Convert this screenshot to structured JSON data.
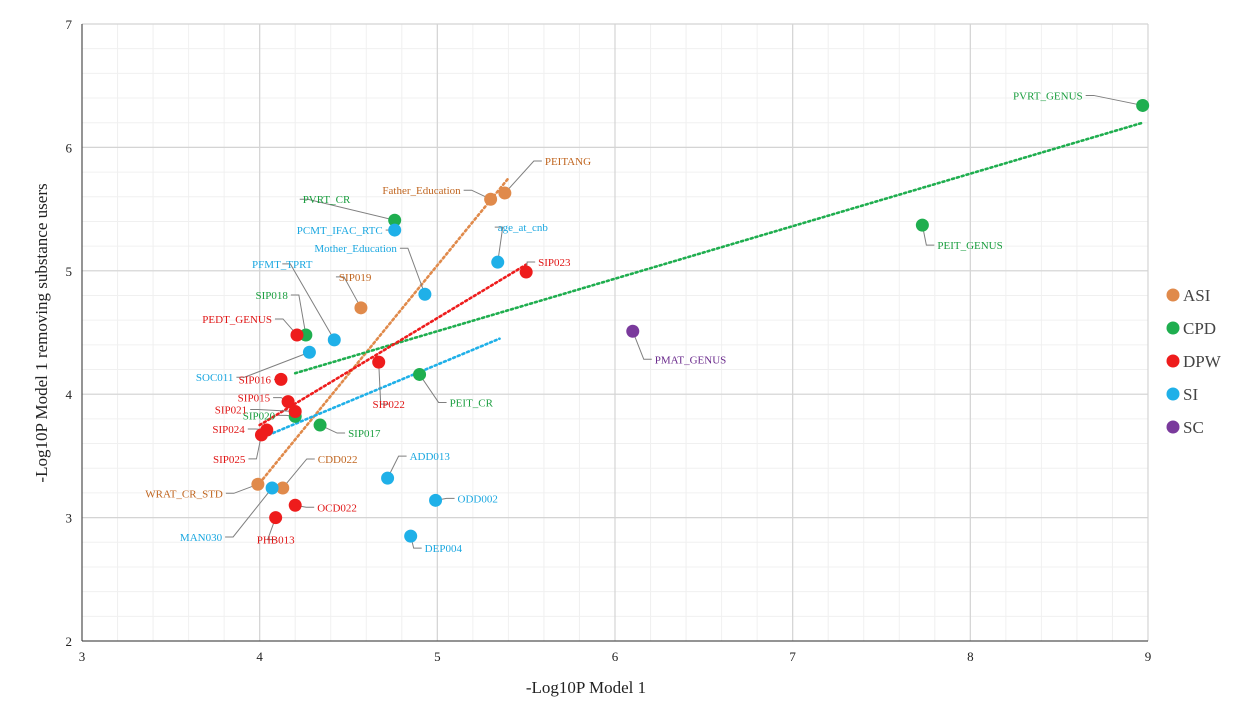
{
  "chart_data": {
    "type": "scatter",
    "title": "",
    "xlabel": "-Log10P Model 1",
    "ylabel": "-Log10P Model 1 removing substance users",
    "xlim": [
      3,
      9
    ],
    "ylim": [
      2,
      7
    ],
    "xticks": [
      "3",
      "4",
      "5",
      "6",
      "7",
      "8",
      "9"
    ],
    "yticks": [
      "2",
      "3",
      "4",
      "5",
      "6",
      "7"
    ],
    "grid": true,
    "legend_position": "right",
    "colors": {
      "ASI": "#e08a4b",
      "CPD": "#1fae4f",
      "DPW": "#ee1c1c",
      "SI": "#1fb0e8",
      "SC": "#7a3a9c"
    },
    "label_colors": {
      "ASI": "#c0651f",
      "CPD": "#1a9e3f",
      "DPW": "#e01515",
      "SI": "#1aa7e0",
      "SC": "#6a2a8c"
    },
    "series": [
      {
        "name": "ASI",
        "points": [
          {
            "label": "PEITANG",
            "x": 5.38,
            "y": 5.63
          },
          {
            "label": "Father_Education",
            "x": 5.3,
            "y": 5.58
          },
          {
            "label": "SIP019",
            "x": 4.57,
            "y": 4.7
          },
          {
            "label": "CDD022",
            "x": 4.13,
            "y": 3.24
          },
          {
            "label": "WRAT_CR_STD",
            "x": 3.99,
            "y": 3.27
          }
        ],
        "trend": [
          [
            4.0,
            3.28
          ],
          [
            5.4,
            5.75
          ]
        ]
      },
      {
        "name": "CPD",
        "points": [
          {
            "label": "PVRT_GENUS",
            "x": 8.97,
            "y": 6.34
          },
          {
            "label": "PEIT_GENUS",
            "x": 7.73,
            "y": 5.37
          },
          {
            "label": "PVRT_CR",
            "x": 4.76,
            "y": 5.41
          },
          {
            "label": "SIP018",
            "x": 4.26,
            "y": 4.48
          },
          {
            "label": "PEIT_CR",
            "x": 4.9,
            "y": 4.16
          },
          {
            "label": "SIP017",
            "x": 4.34,
            "y": 3.75
          },
          {
            "label": "SIP020",
            "x": 4.2,
            "y": 3.82
          }
        ],
        "trend": [
          [
            4.2,
            4.17
          ],
          [
            8.97,
            6.2
          ]
        ]
      },
      {
        "name": "DPW",
        "points": [
          {
            "label": "SIP023",
            "x": 5.5,
            "y": 4.99
          },
          {
            "label": "PEDT_GENUS",
            "x": 4.21,
            "y": 4.48
          },
          {
            "label": "SIP022",
            "x": 4.67,
            "y": 4.26
          },
          {
            "label": "SIP016",
            "x": 4.12,
            "y": 4.12
          },
          {
            "label": "SIP015",
            "x": 4.16,
            "y": 3.94
          },
          {
            "label": "SIP021",
            "x": 4.2,
            "y": 3.86
          },
          {
            "label": "SIP024",
            "x": 4.04,
            "y": 3.71
          },
          {
            "label": "SIP025",
            "x": 4.01,
            "y": 3.67
          },
          {
            "label": "OCD022",
            "x": 4.2,
            "y": 3.1
          },
          {
            "label": "PHB013",
            "x": 4.09,
            "y": 3.0
          }
        ],
        "trend": [
          [
            4.0,
            3.75
          ],
          [
            5.5,
            5.05
          ]
        ]
      },
      {
        "name": "SI",
        "points": [
          {
            "label": "PCMT_IFAC_RTC",
            "x": 4.76,
            "y": 5.33
          },
          {
            "label": "age_at_cnb",
            "x": 5.34,
            "y": 5.07
          },
          {
            "label": "Mother_Education",
            "x": 4.93,
            "y": 4.81
          },
          {
            "label": "PFMT_TPRT",
            "x": 4.42,
            "y": 4.44
          },
          {
            "label": "SOC011",
            "x": 4.28,
            "y": 4.34
          },
          {
            "label": "ADD013",
            "x": 4.72,
            "y": 3.32
          },
          {
            "label": "ODD002",
            "x": 4.99,
            "y": 3.14
          },
          {
            "label": "DEP004",
            "x": 4.85,
            "y": 2.85
          },
          {
            "label": "MAN030",
            "x": 4.07,
            "y": 3.24
          }
        ],
        "trend": [
          [
            4.05,
            3.67
          ],
          [
            5.35,
            4.45
          ]
        ]
      },
      {
        "name": "SC",
        "points": [
          {
            "label": "PMAT_GENUS",
            "x": 6.1,
            "y": 4.51
          }
        ],
        "trend": null
      }
    ]
  }
}
